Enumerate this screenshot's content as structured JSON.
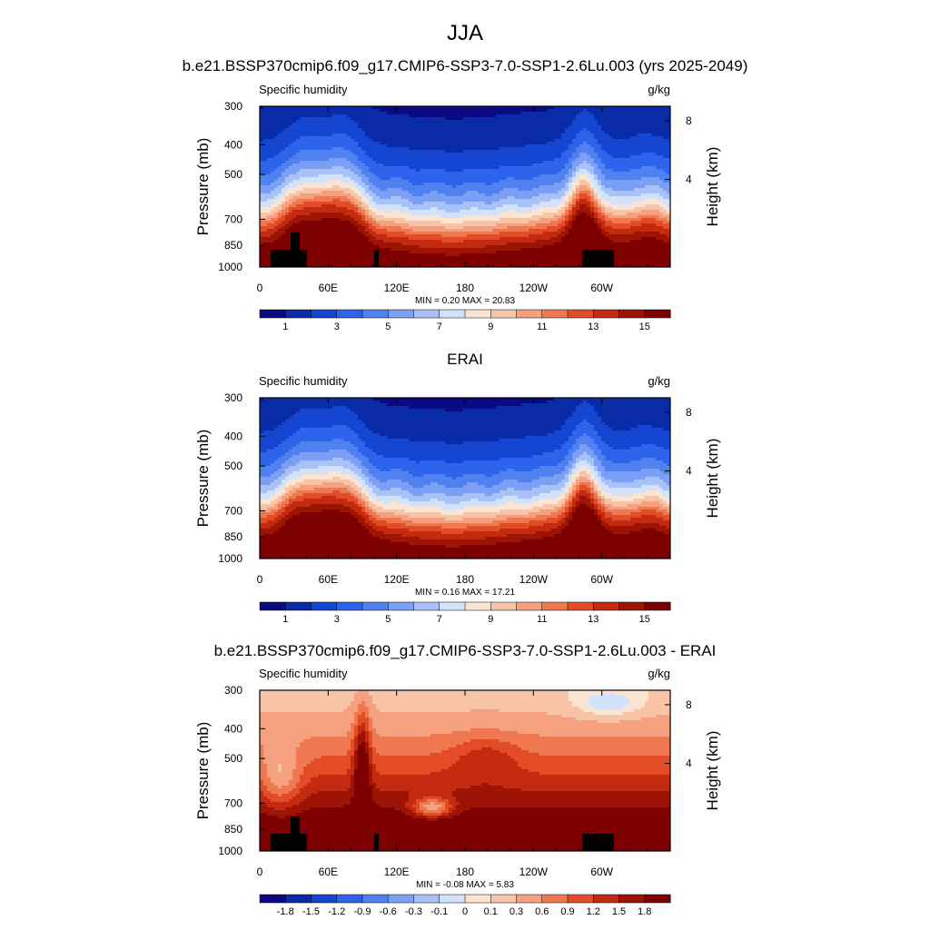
{
  "main_title": "JJA",
  "chart_data": [
    {
      "type": "heatmap",
      "title": "b.e21.BSSP370cmip6.f09_g17.CMIP6-SSP3-7.0-SSP1-2.6Lu.003 (yrs 2025-2049)",
      "variable": "Specific humidity",
      "units": "g/kg",
      "ylabel": "Pressure (mb)",
      "y2label": "Height (km)",
      "x_ticks": [
        "0",
        "60E",
        "120E",
        "180",
        "120W",
        "60W"
      ],
      "y_ticks": [
        "300",
        "400",
        "500",
        "700",
        "850",
        "1000"
      ],
      "y2_ticks": [
        "8",
        "4"
      ],
      "stats": "MIN =   0.20  MAX =  20.83",
      "colorbar_labels": [
        "1",
        "3",
        "5",
        "7",
        "9",
        "11",
        "13",
        "15"
      ],
      "colormap": "diverging",
      "kind": "climo",
      "terrain": true,
      "min": 0.2,
      "max": 20.83
    },
    {
      "type": "heatmap",
      "title": "ERAI",
      "variable": "Specific humidity",
      "units": "g/kg",
      "ylabel": "Pressure (mb)",
      "y2label": "Height (km)",
      "x_ticks": [
        "0",
        "60E",
        "120E",
        "180",
        "120W",
        "60W"
      ],
      "y_ticks": [
        "300",
        "400",
        "500",
        "700",
        "850",
        "1000"
      ],
      "y2_ticks": [
        "8",
        "4"
      ],
      "stats": "MIN =   0.16  MAX =  17.21",
      "colorbar_labels": [
        "1",
        "3",
        "5",
        "7",
        "9",
        "11",
        "13",
        "15"
      ],
      "colormap": "diverging",
      "kind": "climo",
      "terrain": false,
      "min": 0.16,
      "max": 17.21
    },
    {
      "type": "heatmap",
      "title": "b.e21.BSSP370cmip6.f09_g17.CMIP6-SSP3-7.0-SSP1-2.6Lu.003 - ERAI",
      "variable": "Specific humidity",
      "units": "g/kg",
      "ylabel": "Pressure (mb)",
      "y2label": "Height (km)",
      "x_ticks": [
        "0",
        "60E",
        "120E",
        "180",
        "120W",
        "60W"
      ],
      "y_ticks": [
        "300",
        "400",
        "500",
        "700",
        "850",
        "1000"
      ],
      "y2_ticks": [
        "8",
        "4"
      ],
      "stats": "MIN =  -0.08  MAX =   5.83",
      "colorbar_labels": [
        "-1.8",
        "-1.5",
        "-1.2",
        "-0.9",
        "-0.6",
        "-0.3",
        "-0.1",
        "0",
        "0.1",
        "0.3",
        "0.6",
        "0.9",
        "1.2",
        "1.5",
        "1.8"
      ],
      "colormap": "diverging",
      "kind": "diff",
      "terrain": true,
      "min": -0.08,
      "max": 5.83
    }
  ],
  "colors": [
    "#0a0a82",
    "#0a2ba8",
    "#1446d2",
    "#2d64eb",
    "#5081f0",
    "#7b9ff5",
    "#a8c2f8",
    "#d2e2fb",
    "#fbe4d2",
    "#f8c4a8",
    "#f5a07e",
    "#f07850",
    "#e24d28",
    "#c42a10",
    "#9d1405",
    "#7d0000"
  ]
}
